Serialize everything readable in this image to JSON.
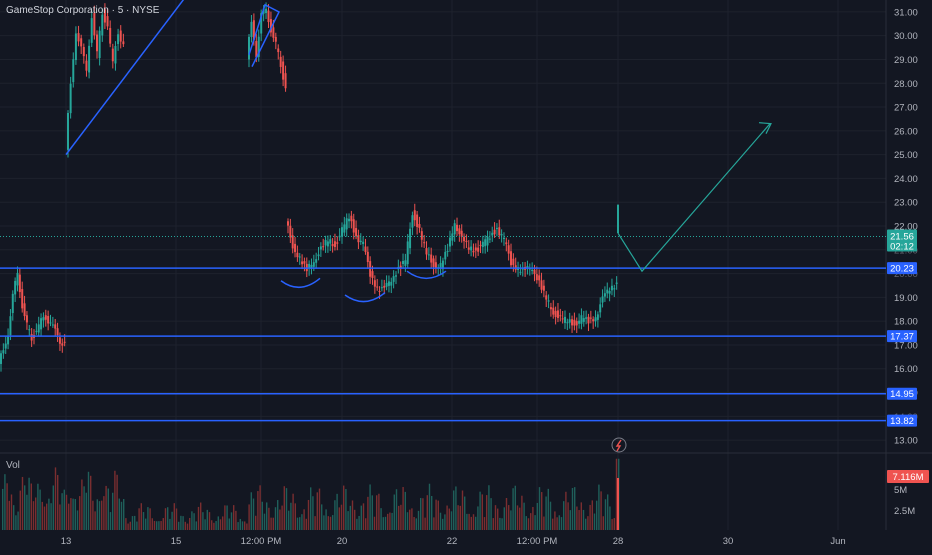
{
  "header": {
    "symbol_title": "GameStop Corporation · 5 · NYSE",
    "volume_label": "Vol"
  },
  "colors": {
    "background": "#131722",
    "grid": "#1e222d",
    "up": "#26a69a",
    "down": "#ef5350",
    "line_blue": "#2962ff",
    "projection": "#26a69a",
    "axis_text": "#b2b5be"
  },
  "chart_data": {
    "type": "candlestick",
    "title": "GameStop Corporation · 5 · NYSE",
    "ylim": [
      12.5,
      31.5
    ],
    "y_ticks": [
      "13.00",
      "14.00",
      "15.00",
      "16.00",
      "17.00",
      "18.00",
      "19.00",
      "20.00",
      "21.00",
      "22.00",
      "23.00",
      "24.00",
      "25.00",
      "26.00",
      "27.00",
      "28.00",
      "29.00",
      "30.00",
      "31.00"
    ],
    "x_ticks": [
      "13",
      "15",
      "12:00 PM",
      "20",
      "22",
      "12:00 PM",
      "28",
      "30",
      "Jun"
    ],
    "price_segments": [
      {
        "pts": [
          16.2,
          16.8,
          17.5,
          19.0,
          20.1,
          18.6,
          17.8,
          17.3,
          17.6,
          18.0,
          18.2,
          17.9,
          17.6,
          17.2,
          17.0
        ]
      },
      {
        "pts": [
          25.2,
          28.0,
          30.2,
          29.4,
          28.6,
          30.8,
          29.2,
          31.0,
          30.4,
          28.8,
          30.2,
          29.6
        ]
      },
      {
        "pts": [
          29.0,
          30.6,
          29.2,
          30.8,
          31.2,
          30.2,
          29.6,
          28.8,
          27.8
        ]
      },
      {
        "pts": [
          22.2,
          21.2,
          20.6,
          20.1,
          20.6,
          21.0,
          21.4,
          21.2,
          21.8,
          22.4,
          21.6,
          21.2,
          20.0,
          19.4,
          19.3,
          19.8,
          20.2,
          20.5,
          22.6,
          21.8,
          20.8,
          20.4,
          20.3,
          21.0,
          22.2,
          21.4,
          21.1,
          21.0,
          21.2,
          21.6,
          21.9,
          21.4,
          20.5,
          20.2,
          20.1,
          20.3,
          19.6,
          18.9,
          18.4,
          18.1,
          18.0,
          17.9,
          18.1,
          18.0,
          18.2,
          18.9,
          19.4,
          19.6
        ]
      },
      {
        "pts": [
          22.9,
          21.7
        ]
      }
    ],
    "current_price": "21.56",
    "countdown": "02:12",
    "horizontal_levels": [
      "20.23",
      "17.37",
      "14.95",
      "13.82"
    ],
    "projection": {
      "from": 21.7,
      "bottom": 20.1,
      "target": 26.3
    },
    "volume_axis": [
      "5M",
      "2.5M"
    ],
    "current_volume": "7.116M"
  }
}
